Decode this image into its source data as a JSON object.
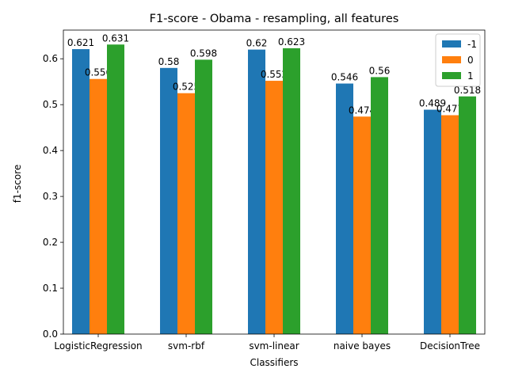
{
  "chart_data": {
    "type": "bar",
    "title": "F1-score - Obama - resampling, all features",
    "xlabel": "Classifiers",
    "ylabel": "f1-score",
    "categories": [
      "LogisticRegression",
      "svm-rbf",
      "svm-linear",
      "naive bayes",
      "DecisionTree"
    ],
    "series": [
      {
        "name": "-1",
        "color": "#1f77b4",
        "values": [
          0.621,
          0.58,
          0.62,
          0.546,
          0.489
        ]
      },
      {
        "name": "0",
        "color": "#ff7f0e",
        "values": [
          0.556,
          0.525,
          0.552,
          0.474,
          0.477
        ]
      },
      {
        "name": "1",
        "color": "#2ca02c",
        "values": [
          0.631,
          0.598,
          0.623,
          0.56,
          0.518
        ]
      }
    ],
    "ylim": [
      0,
      0.6625
    ],
    "yticks": [
      "0.0",
      "0.1",
      "0.2",
      "0.3",
      "0.4",
      "0.5",
      "0.6"
    ],
    "grid": false,
    "legend_position": "top-right"
  }
}
